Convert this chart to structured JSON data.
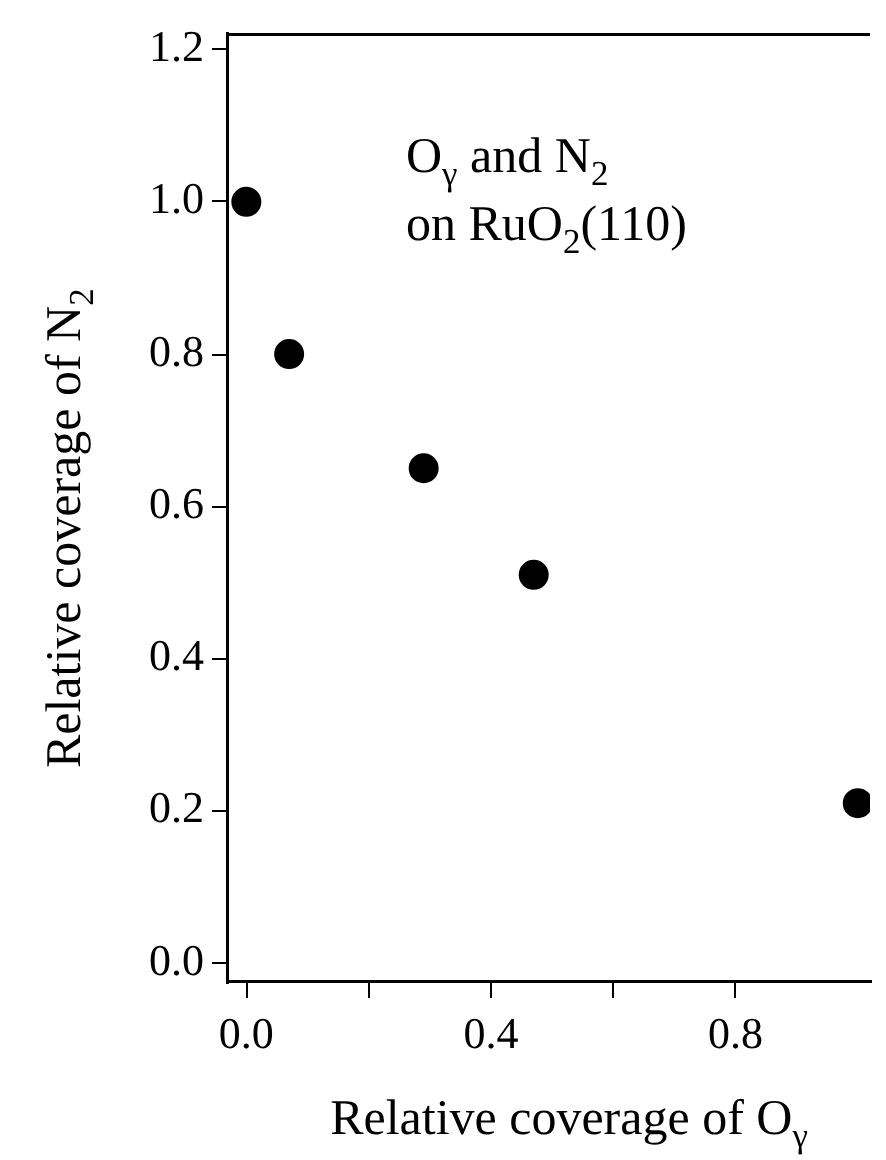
{
  "chart_data": {
    "type": "scatter",
    "xlabel": "Relative coverage of O$_{γ}$",
    "ylabel": "Relative coverage of N$_{2}$",
    "annotations": [
      "O$_{γ}$ and N$_{2}$",
      "on RuO$_{2}$(110)"
    ],
    "x": [
      0.0,
      0.07,
      0.29,
      0.47,
      1.0
    ],
    "series": [
      {
        "color": "#000000",
        "values": [
          1.0,
          0.8,
          0.65,
          0.51,
          0.21
        ]
      }
    ],
    "marker": "circle",
    "grid": false,
    "legend": false,
    "xlim": [
      -0.03,
      1.02
    ],
    "xticks": [
      {
        "value": 0,
        "label": "0.0"
      },
      {
        "value": 0.2,
        "label": null
      },
      0.4,
      {
        "value": 0.6,
        "label": null
      },
      0.8
    ],
    "ylim": [
      -0.025,
      1.22
    ],
    "yticks": [
      {
        "value": 0,
        "label": "0.0"
      },
      0.2,
      0.4,
      0.6,
      0.8,
      {
        "value": 1,
        "label": "1.0"
      },
      1.2
    ]
  }
}
